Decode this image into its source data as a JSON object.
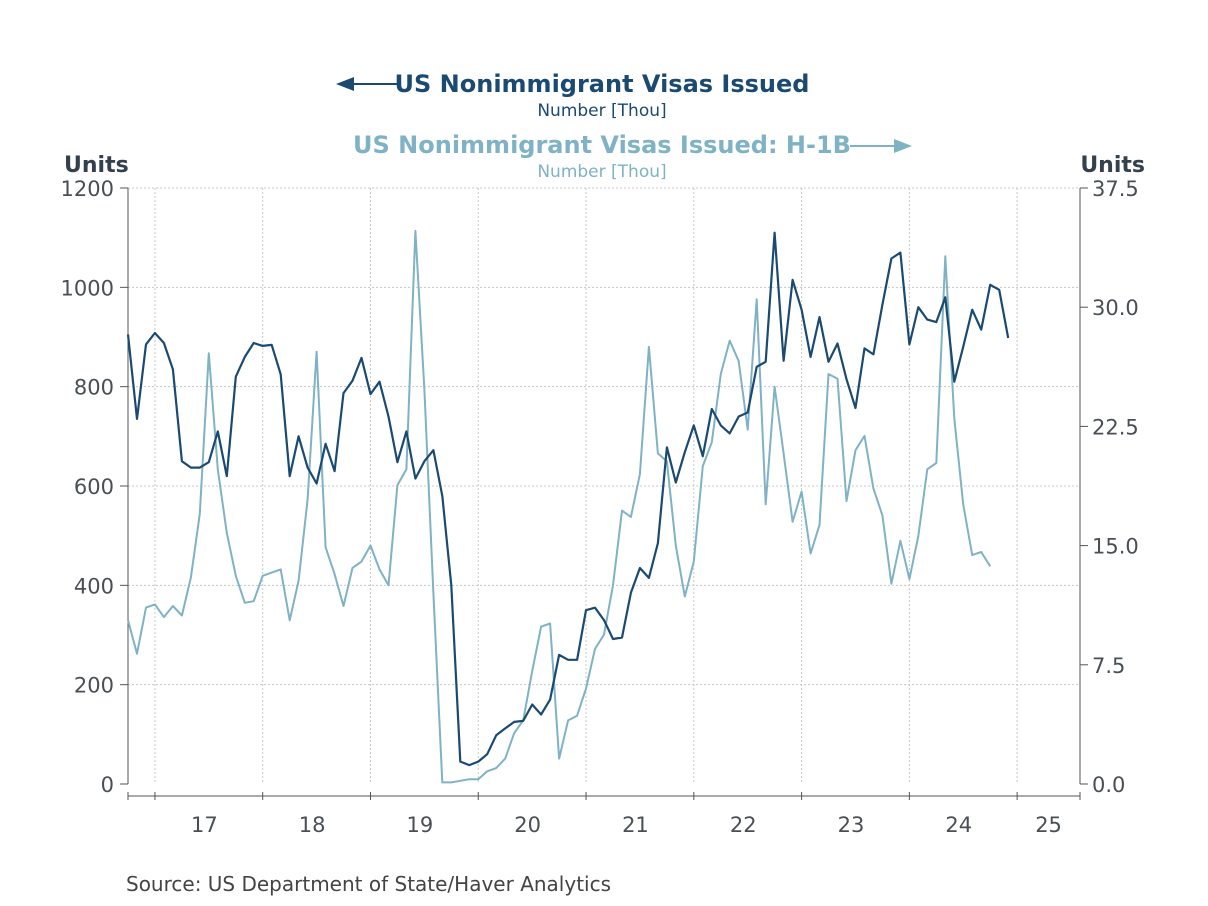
{
  "chart_data": {
    "type": "line",
    "title_left": "US Nonimmigrant Visas Issued",
    "subtitle_left": "Number [Thou]",
    "title_right": "US Nonimmigrant Visas Issued: H-1B",
    "subtitle_right": "Number [Thou]",
    "ylabel_left": "Units",
    "ylabel_right": "Units",
    "source": "Source:  US Department of State/Haver Analytics",
    "ylim_left": [
      0,
      1200
    ],
    "ylim_right": [
      0,
      37.5
    ],
    "left_ticks": [
      "0",
      "200",
      "400",
      "600",
      "800",
      "1000",
      "1200"
    ],
    "left_tick_values": [
      0,
      200,
      400,
      600,
      800,
      1000,
      1200
    ],
    "right_ticks": [
      "0.0",
      "7.5",
      "15.0",
      "22.5",
      "30.0",
      "37.5"
    ],
    "right_tick_values": [
      0,
      7.5,
      15,
      22.5,
      30,
      37.5
    ],
    "x_labels": [
      "17",
      "18",
      "19",
      "20",
      "21",
      "22",
      "23",
      "24",
      "25"
    ],
    "x_start": "2016-10",
    "x_end": "2025-08",
    "grid": true,
    "colors": {
      "primary": "#1a4a72",
      "secondary": "#7fb2c4",
      "grid": "#c8c8c8",
      "axis": "#555555"
    },
    "series": [
      {
        "name": "US Nonimmigrant Visas Issued",
        "axis": "left",
        "x_first": "2016-10",
        "values": [
          905,
          735,
          885,
          908,
          888,
          835,
          650,
          637,
          637,
          648,
          710,
          620,
          820,
          860,
          888,
          882,
          884,
          825,
          620,
          700,
          637,
          605,
          685,
          630,
          787,
          812,
          858,
          785,
          810,
          740,
          648,
          710,
          615,
          650,
          672,
          580,
          400,
          45,
          38,
          45,
          60,
          98,
          112,
          125,
          127,
          160,
          140,
          170,
          260,
          250,
          250,
          350,
          355,
          330,
          292,
          295,
          385,
          435,
          415,
          485,
          678,
          607,
          668,
          722,
          660,
          755,
          722,
          706,
          740,
          748,
          840,
          850,
          1110,
          852,
          1015,
          955,
          860,
          940,
          850,
          887,
          815,
          757,
          877,
          865,
          965,
          1058,
          1070,
          885,
          960,
          935,
          930,
          980,
          810,
          880,
          955,
          915,
          1005,
          995,
          898
        ]
      },
      {
        "name": "US Nonimmigrant Visas Issued: H-1B",
        "axis": "right",
        "x_first": "2016-10",
        "values": [
          10.3,
          8.2,
          11.1,
          11.3,
          10.5,
          11.2,
          10.6,
          13.0,
          17.0,
          27.1,
          19.8,
          15.8,
          13.1,
          11.4,
          11.5,
          13.1,
          13.3,
          13.5,
          10.3,
          12.8,
          17.9,
          27.2,
          14.9,
          13.2,
          11.2,
          13.6,
          14.0,
          15.0,
          13.5,
          12.5,
          18.8,
          19.8,
          34.8,
          24.8,
          12.0,
          0.1,
          0.1,
          0.2,
          0.3,
          0.3,
          0.8,
          1.0,
          1.6,
          3.2,
          4.0,
          7.1,
          9.9,
          10.1,
          1.6,
          4.0,
          4.3,
          6.0,
          8.5,
          9.4,
          12.5,
          17.2,
          16.8,
          19.5,
          27.5,
          20.8,
          20.3,
          15.0,
          11.8,
          14.0,
          20.0,
          21.5,
          25.8,
          27.9,
          26.6,
          22.3,
          30.5,
          17.6,
          25.0,
          20.8,
          16.5,
          18.4,
          14.5,
          16.3,
          25.8,
          25.5,
          17.8,
          21.0,
          21.9,
          18.6,
          16.9,
          12.6,
          15.3,
          12.9,
          15.6,
          19.8,
          20.2,
          33.2,
          23.0,
          17.6,
          14.4,
          14.6,
          13.7
        ]
      }
    ]
  }
}
